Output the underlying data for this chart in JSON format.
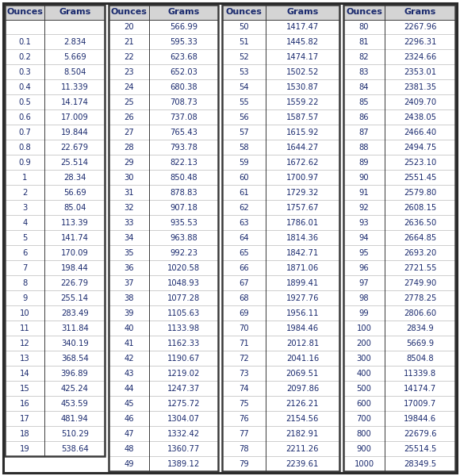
{
  "col1": {
    "headers": [
      "Ounces",
      "Grams"
    ],
    "ounces": [
      "",
      "0.1",
      "0.2",
      "0.3",
      "0.4",
      "0.5",
      "0.6",
      "0.7",
      "0.8",
      "0.9",
      "1",
      "2",
      "3",
      "4",
      "5",
      "6",
      "7",
      "8",
      "9",
      "10",
      "11",
      "12",
      "13",
      "14",
      "15",
      "16",
      "17",
      "18",
      "19"
    ],
    "grams": [
      "",
      "2.834",
      "5.669",
      "8.504",
      "11.339",
      "14.174",
      "17.009",
      "19.844",
      "22.679",
      "25.514",
      "28.34",
      "56.69",
      "85.04",
      "113.39",
      "141.74",
      "170.09",
      "198.44",
      "226.79",
      "255.14",
      "283.49",
      "311.84",
      "340.19",
      "368.54",
      "396.89",
      "425.24",
      "453.59",
      "481.94",
      "510.29",
      "538.64"
    ]
  },
  "col2": {
    "headers": [
      "Ounces",
      "Grams"
    ],
    "ounces": [
      "20",
      "21",
      "22",
      "23",
      "24",
      "25",
      "26",
      "27",
      "28",
      "29",
      "30",
      "31",
      "32",
      "33",
      "34",
      "35",
      "36",
      "37",
      "38",
      "39",
      "40",
      "41",
      "42",
      "43",
      "44",
      "45",
      "46",
      "47",
      "48",
      "49"
    ],
    "grams": [
      "566.99",
      "595.33",
      "623.68",
      "652.03",
      "680.38",
      "708.73",
      "737.08",
      "765.43",
      "793.78",
      "822.13",
      "850.48",
      "878.83",
      "907.18",
      "935.53",
      "963.88",
      "992.23",
      "1020.58",
      "1048.93",
      "1077.28",
      "1105.63",
      "1133.98",
      "1162.33",
      "1190.67",
      "1219.02",
      "1247.37",
      "1275.72",
      "1304.07",
      "1332.42",
      "1360.77",
      "1389.12"
    ]
  },
  "col3": {
    "headers": [
      "Ounces",
      "Grams"
    ],
    "ounces": [
      "50",
      "51",
      "52",
      "53",
      "54",
      "55",
      "56",
      "57",
      "58",
      "59",
      "60",
      "61",
      "62",
      "63",
      "64",
      "65",
      "66",
      "67",
      "68",
      "69",
      "70",
      "71",
      "72",
      "73",
      "74",
      "75",
      "76",
      "77",
      "78",
      "79"
    ],
    "grams": [
      "1417.47",
      "1445.82",
      "1474.17",
      "1502.52",
      "1530.87",
      "1559.22",
      "1587.57",
      "1615.92",
      "1644.27",
      "1672.62",
      "1700.97",
      "1729.32",
      "1757.67",
      "1786.01",
      "1814.36",
      "1842.71",
      "1871.06",
      "1899.41",
      "1927.76",
      "1956.11",
      "1984.46",
      "2012.81",
      "2041.16",
      "2069.51",
      "2097.86",
      "2126.21",
      "2154.56",
      "2182.91",
      "2211.26",
      "2239.61"
    ]
  },
  "col4": {
    "headers": [
      "Ounces",
      "Grams"
    ],
    "ounces": [
      "80",
      "81",
      "82",
      "83",
      "84",
      "85",
      "86",
      "87",
      "88",
      "89",
      "90",
      "91",
      "92",
      "93",
      "94",
      "95",
      "96",
      "97",
      "98",
      "99",
      "100",
      "200",
      "300",
      "400",
      "500",
      "600",
      "700",
      "800",
      "900",
      "1000"
    ],
    "grams": [
      "2267.96",
      "2296.31",
      "2324.66",
      "2353.01",
      "2381.35",
      "2409.70",
      "2438.05",
      "2466.40",
      "2494.75",
      "2523.10",
      "2551.45",
      "2579.80",
      "2608.15",
      "2636.50",
      "2664.85",
      "2693.20",
      "2721.55",
      "2749.90",
      "2778.25",
      "2806.60",
      "2834.9",
      "5669.9",
      "8504.8",
      "11339.8",
      "14174.7",
      "17009.7",
      "19844.6",
      "22679.6",
      "25514.5",
      "28349.5"
    ]
  },
  "bg_color": "#ffffff",
  "border_color": "#3a3a3a",
  "text_color": "#1a2a6e",
  "font_size": 7.2,
  "header_font_size": 8.0
}
